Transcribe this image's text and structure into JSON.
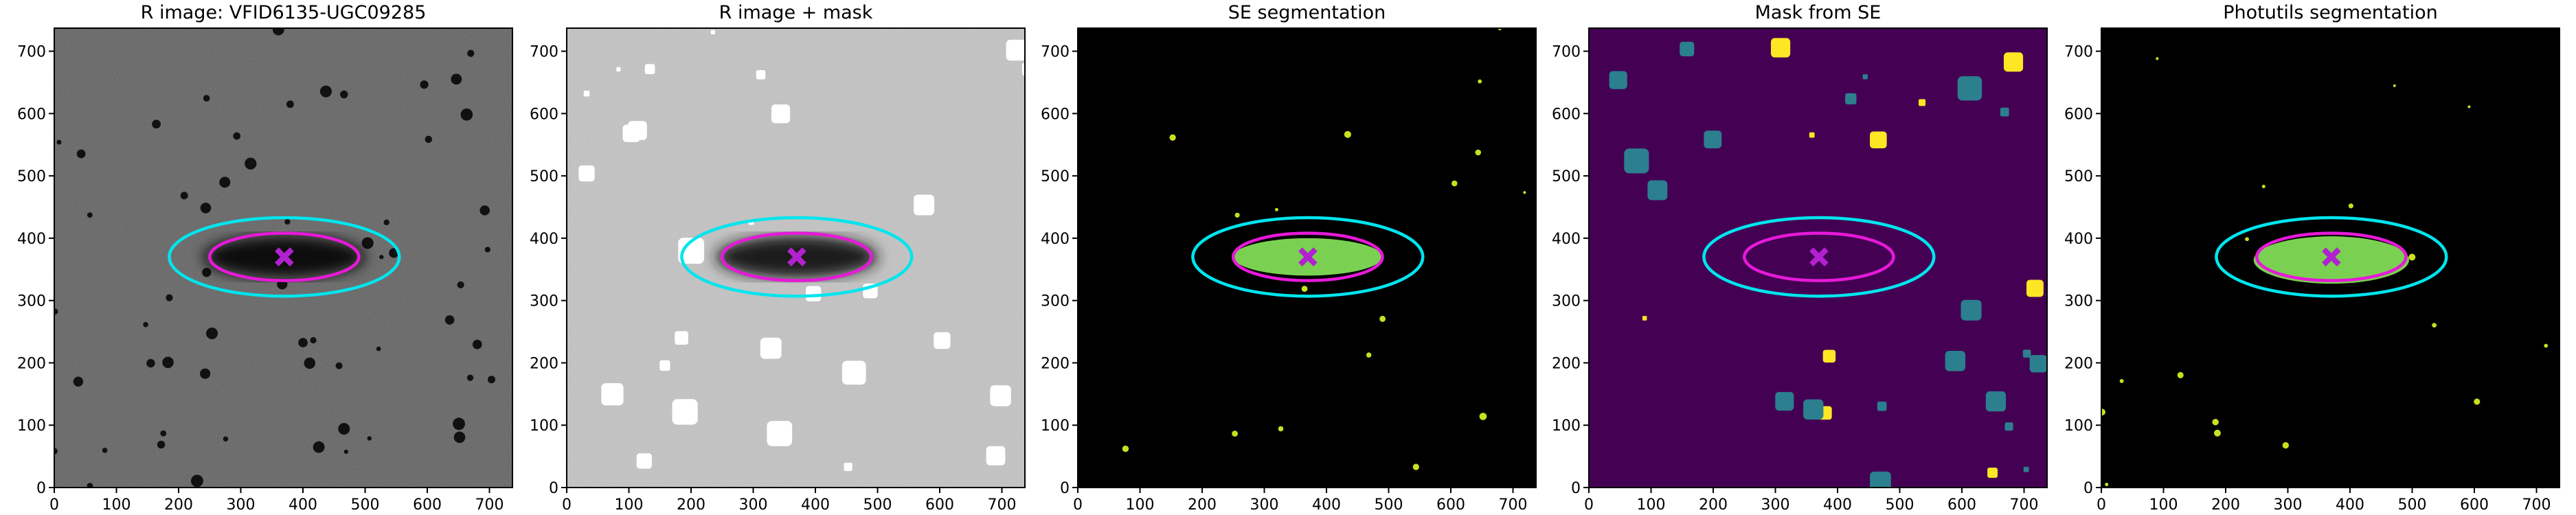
{
  "chart_data": [
    {
      "type": "image",
      "title": "R image: VFID6135-UGC09285",
      "background": "#5e5e5e",
      "texture": true,
      "xlim": [
        0,
        737
      ],
      "ylim": [
        0,
        737
      ],
      "xticks": [
        0,
        100,
        200,
        300,
        400,
        500,
        600,
        700
      ],
      "yticks": [
        0,
        100,
        200,
        300,
        400,
        500,
        600,
        700
      ],
      "source": {
        "cx": 370,
        "cy": 370,
        "a": 130,
        "b": 34,
        "color": "#0a0a0a"
      },
      "ellipses": [
        {
          "cx": 370,
          "cy": 370,
          "a": 185,
          "b": 63,
          "color": "#00e5ee"
        },
        {
          "cx": 370,
          "cy": 370,
          "a": 120,
          "b": 38,
          "color": "#e619d8"
        }
      ],
      "marker": {
        "x": 370,
        "y": 370,
        "color": "#b221d0"
      }
    },
    {
      "type": "image",
      "title": "R image + mask",
      "background": "#c4c4c4",
      "texture": true,
      "xlim": [
        0,
        737
      ],
      "ylim": [
        0,
        737
      ],
      "xticks": [
        0,
        100,
        200,
        300,
        400,
        500,
        600,
        700
      ],
      "yticks": [
        0,
        100,
        200,
        300,
        400,
        500,
        600,
        700
      ],
      "source": {
        "cx": 370,
        "cy": 370,
        "a": 130,
        "b": 34,
        "color": "#1a1a1a"
      },
      "ellipses": [
        {
          "cx": 370,
          "cy": 370,
          "a": 185,
          "b": 63,
          "color": "#00e5ee"
        },
        {
          "cx": 370,
          "cy": 370,
          "a": 120,
          "b": 38,
          "color": "#e619d8"
        }
      ],
      "marker": {
        "x": 370,
        "y": 370,
        "color": "#b221d0"
      }
    },
    {
      "type": "image",
      "title": "SE segmentation",
      "background": "#000000",
      "texture": false,
      "xlim": [
        0,
        737
      ],
      "ylim": [
        0,
        737
      ],
      "xticks": [
        0,
        100,
        200,
        300,
        400,
        500,
        600,
        700
      ],
      "yticks": [
        0,
        100,
        200,
        300,
        400,
        500,
        600,
        700
      ],
      "source": {
        "cx": 370,
        "cy": 370,
        "a": 120,
        "b": 30,
        "color": "#7ad151"
      },
      "ellipses": [
        {
          "cx": 370,
          "cy": 370,
          "a": 185,
          "b": 63,
          "color": "#00e5ee"
        },
        {
          "cx": 370,
          "cy": 370,
          "a": 120,
          "b": 38,
          "color": "#e619d8"
        }
      ],
      "marker": {
        "x": 370,
        "y": 370,
        "color": "#b221d0"
      }
    },
    {
      "type": "image",
      "title": "Mask from SE",
      "background": "#440154",
      "texture": false,
      "xlim": [
        0,
        737
      ],
      "ylim": [
        0,
        737
      ],
      "xticks": [
        0,
        100,
        200,
        300,
        400,
        500,
        600,
        700
      ],
      "yticks": [
        0,
        100,
        200,
        300,
        400,
        500,
        600,
        700
      ],
      "ellipses": [
        {
          "cx": 370,
          "cy": 370,
          "a": 185,
          "b": 63,
          "color": "#00e5ee"
        },
        {
          "cx": 370,
          "cy": 370,
          "a": 120,
          "b": 38,
          "color": "#e619d8"
        }
      ],
      "marker": {
        "x": 370,
        "y": 370,
        "color": "#b221d0"
      }
    },
    {
      "type": "image",
      "title": "Photutils segmentation",
      "background": "#000000",
      "texture": false,
      "xlim": [
        0,
        737
      ],
      "ylim": [
        0,
        737
      ],
      "xticks": [
        0,
        100,
        200,
        300,
        400,
        500,
        600,
        700
      ],
      "yticks": [
        0,
        100,
        200,
        300,
        400,
        500,
        600,
        700
      ],
      "source": {
        "cx": 370,
        "cy": 365,
        "a": 125,
        "b": 38,
        "color": "#7ad151"
      },
      "ellipses": [
        {
          "cx": 370,
          "cy": 370,
          "a": 185,
          "b": 63,
          "color": "#00e5ee"
        },
        {
          "cx": 370,
          "cy": 370,
          "a": 120,
          "b": 38,
          "color": "#e619d8"
        }
      ],
      "marker": {
        "x": 370,
        "y": 370,
        "color": "#b221d0"
      }
    }
  ]
}
